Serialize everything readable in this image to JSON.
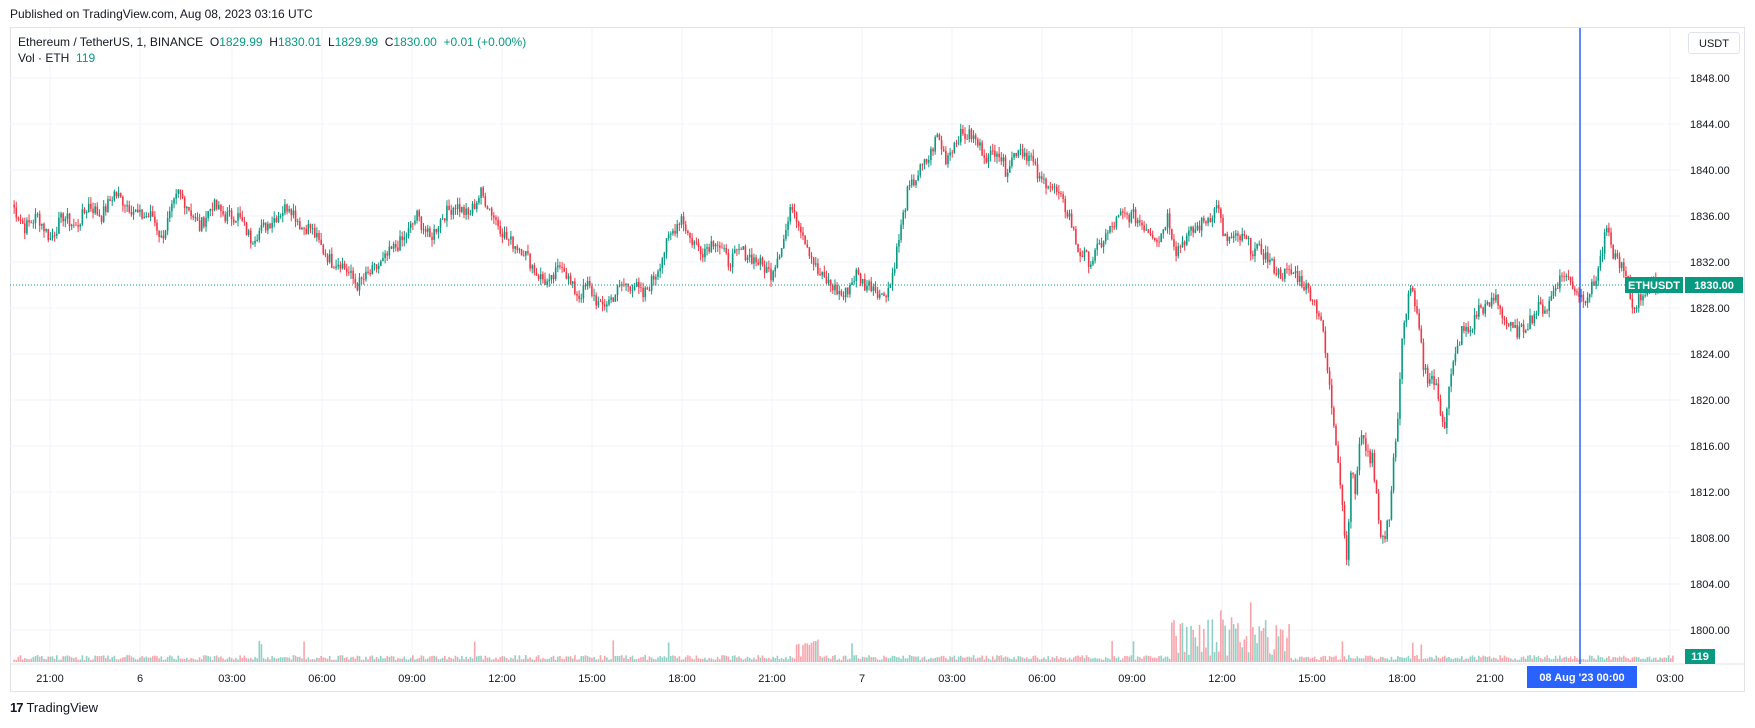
{
  "header": {
    "published": "Published on TradingView.com, Aug 08, 2023 03:16 UTC"
  },
  "legend": {
    "symbol": "Ethereum / TetherUS, 1, BINANCE",
    "o_label": "O",
    "o_value": "1829.99",
    "h_label": "H",
    "h_value": "1830.01",
    "l_label": "L",
    "l_value": "1829.99",
    "c_label": "C",
    "c_value": "1830.00",
    "change": "+0.01 (+0.00%)",
    "vol_label": "Vol · ETH",
    "vol_value": "119"
  },
  "currency_button": "USDT",
  "footer": {
    "logo_text": "TradingView",
    "logo_mark": "17"
  },
  "colors": {
    "up": "#089981",
    "down": "#f23645",
    "grid": "#f0f3fa",
    "crosshair": "#2962ff",
    "last_price": "#089981"
  },
  "chart_data": {
    "type": "candlestick",
    "title": "Ethereum / TetherUS, 1, BINANCE",
    "ylim": [
      1796,
      1851
    ],
    "y_ticks": [
      "1800.00",
      "1804.00",
      "1808.00",
      "1812.00",
      "1816.00",
      "1820.00",
      "1824.00",
      "1828.00",
      "1832.00",
      "1836.00",
      "1840.00",
      "1844.00",
      "1848.00"
    ],
    "x_ticks": [
      "21:00",
      "6",
      "03:00",
      "06:00",
      "09:00",
      "12:00",
      "15:00",
      "18:00",
      "21:00",
      "7",
      "03:00",
      "06:00",
      "09:00",
      "12:00",
      "15:00",
      "18:00",
      "21:00",
      "08 Aug '23  00:00",
      "03:00"
    ],
    "last_price": {
      "symbol": "ETHUSDT",
      "value": 1830.0,
      "label": "1830.00"
    },
    "volume_last_label": "119",
    "crosshair_label": "08 Aug '23  00:00",
    "price_path": [
      [
        0,
        1837
      ],
      [
        6,
        1835
      ],
      [
        12,
        1836
      ],
      [
        18,
        1834
      ],
      [
        24,
        1836
      ],
      [
        30,
        1835
      ],
      [
        36,
        1837
      ],
      [
        42,
        1836
      ],
      [
        48,
        1838
      ],
      [
        54,
        1837
      ],
      [
        60,
        1836
      ],
      [
        66,
        1836
      ],
      [
        70,
        1834
      ],
      [
        74,
        1836
      ],
      [
        78,
        1838
      ],
      [
        82,
        1837
      ],
      [
        88,
        1835
      ],
      [
        94,
        1837
      ],
      [
        100,
        1836
      ],
      [
        106,
        1836
      ],
      [
        112,
        1834
      ],
      [
        118,
        1835
      ],
      [
        124,
        1836
      ],
      [
        130,
        1837
      ],
      [
        136,
        1835
      ],
      [
        140,
        1835
      ],
      [
        146,
        1833
      ],
      [
        150,
        1832
      ],
      [
        154,
        1832
      ],
      [
        158,
        1831
      ],
      [
        162,
        1830
      ],
      [
        168,
        1831
      ],
      [
        174,
        1832
      ],
      [
        178,
        1833
      ],
      [
        184,
        1834
      ],
      [
        190,
        1836
      ],
      [
        196,
        1834
      ],
      [
        202,
        1836
      ],
      [
        208,
        1837
      ],
      [
        214,
        1836
      ],
      [
        220,
        1838
      ],
      [
        226,
        1836
      ],
      [
        232,
        1834
      ],
      [
        240,
        1833
      ],
      [
        246,
        1831
      ],
      [
        252,
        1830
      ],
      [
        258,
        1832
      ],
      [
        262,
        1830
      ],
      [
        266,
        1829
      ],
      [
        270,
        1830
      ],
      [
        276,
        1828
      ],
      [
        282,
        1829
      ],
      [
        286,
        1830
      ],
      [
        292,
        1830
      ],
      [
        296,
        1829
      ],
      [
        302,
        1831
      ],
      [
        308,
        1834
      ],
      [
        314,
        1836
      ],
      [
        318,
        1834
      ],
      [
        324,
        1833
      ],
      [
        330,
        1834
      ],
      [
        336,
        1832
      ],
      [
        342,
        1833
      ],
      [
        350,
        1832
      ],
      [
        356,
        1831
      ],
      [
        362,
        1834
      ],
      [
        366,
        1837
      ],
      [
        372,
        1834
      ],
      [
        378,
        1831
      ],
      [
        384,
        1830
      ],
      [
        390,
        1829
      ],
      [
        396,
        1831
      ],
      [
        400,
        1830
      ],
      [
        404,
        1830
      ],
      [
        408,
        1829
      ],
      [
        412,
        1830
      ],
      [
        416,
        1834
      ],
      [
        420,
        1838
      ],
      [
        426,
        1840
      ],
      [
        430,
        1841
      ],
      [
        434,
        1843
      ],
      [
        438,
        1841
      ],
      [
        444,
        1843
      ],
      [
        450,
        1843
      ],
      [
        454,
        1842
      ],
      [
        458,
        1841
      ],
      [
        462,
        1842
      ],
      [
        466,
        1840
      ],
      [
        472,
        1842
      ],
      [
        478,
        1841
      ],
      [
        482,
        1839
      ],
      [
        486,
        1839
      ],
      [
        490,
        1838
      ],
      [
        496,
        1836
      ],
      [
        500,
        1833
      ],
      [
        506,
        1832
      ],
      [
        512,
        1834
      ],
      [
        516,
        1835
      ],
      [
        520,
        1836
      ],
      [
        526,
        1836
      ],
      [
        532,
        1835
      ],
      [
        538,
        1834
      ],
      [
        542,
        1836
      ],
      [
        546,
        1833
      ],
      [
        550,
        1834
      ],
      [
        556,
        1835
      ],
      [
        562,
        1836
      ],
      [
        566,
        1837
      ],
      [
        568,
        1834
      ],
      [
        574,
        1834
      ],
      [
        578,
        1834
      ],
      [
        582,
        1833
      ],
      [
        586,
        1833
      ],
      [
        590,
        1832
      ],
      [
        594,
        1831
      ],
      [
        598,
        1831
      ],
      [
        602,
        1831
      ],
      [
        606,
        1830
      ],
      [
        610,
        1829
      ],
      [
        612,
        1828
      ],
      [
        614,
        1827
      ],
      [
        616,
        1824
      ],
      [
        618,
        1821
      ],
      [
        620,
        1818
      ],
      [
        622,
        1815
      ],
      [
        624,
        1811
      ],
      [
        626,
        1806
      ],
      [
        628,
        1814
      ],
      [
        630,
        1812
      ],
      [
        632,
        1816
      ],
      [
        634,
        1817
      ],
      [
        636,
        1815
      ],
      [
        638,
        1815
      ],
      [
        640,
        1812
      ],
      [
        642,
        1808
      ],
      [
        644,
        1808
      ],
      [
        646,
        1810
      ],
      [
        648,
        1815
      ],
      [
        650,
        1818
      ],
      [
        652,
        1825
      ],
      [
        654,
        1828
      ],
      [
        656,
        1830
      ],
      [
        658,
        1828
      ],
      [
        660,
        1826
      ],
      [
        662,
        1823
      ],
      [
        664,
        1822
      ],
      [
        666,
        1822
      ],
      [
        668,
        1821
      ],
      [
        670,
        1819
      ],
      [
        672,
        1818
      ],
      [
        674,
        1821
      ],
      [
        676,
        1823
      ],
      [
        680,
        1826
      ],
      [
        684,
        1826
      ],
      [
        688,
        1828
      ],
      [
        692,
        1828
      ],
      [
        696,
        1829
      ],
      [
        700,
        1827
      ],
      [
        704,
        1826
      ],
      [
        708,
        1826
      ],
      [
        712,
        1827
      ],
      [
        716,
        1828
      ],
      [
        720,
        1828
      ],
      [
        724,
        1830
      ],
      [
        728,
        1831
      ],
      [
        732,
        1830
      ],
      [
        736,
        1829
      ],
      [
        738,
        1829
      ],
      [
        742,
        1830
      ],
      [
        746,
        1833
      ],
      [
        748,
        1835
      ],
      [
        750,
        1833
      ],
      [
        754,
        1832
      ],
      [
        758,
        1830
      ],
      [
        760,
        1828
      ],
      [
        764,
        1829
      ],
      [
        768,
        1830
      ],
      [
        772,
        1830
      ],
      [
        780,
        1830
      ]
    ]
  }
}
